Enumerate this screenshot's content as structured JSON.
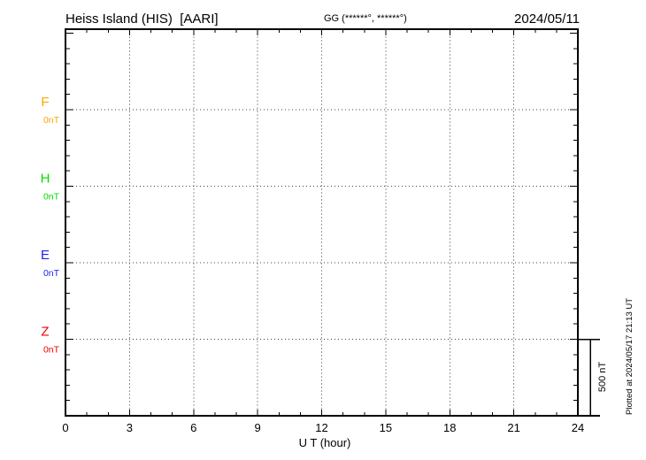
{
  "header": {
    "station_title": "Heiss Island (HIS)  [AARI]",
    "gg_coords": "GG (******°, ******°)",
    "date": "2024/05/11"
  },
  "channels": [
    {
      "label": "F",
      "unit_label": "0nT",
      "color": "#ffa500"
    },
    {
      "label": "H",
      "unit_label": "0nT",
      "color": "#00dd00"
    },
    {
      "label": "E",
      "unit_label": "0nT",
      "color": "#2222ee"
    },
    {
      "label": "Z",
      "unit_label": "0nT",
      "color": "#ee0000"
    }
  ],
  "x_axis": {
    "label": "U T (hour)",
    "tick_labels": [
      "0",
      "3",
      "6",
      "9",
      "12",
      "15",
      "18",
      "21",
      "24"
    ]
  },
  "scale_bar": {
    "label": "500 nT",
    "value_nt": 500
  },
  "plot_note": "Plotted at 2024/05/17 21:13 UT",
  "chart_data": {
    "type": "line",
    "title": "Heiss Island (HIS) [AARI] magnetogram for 2024/05/11",
    "xlabel": "U T (hour)",
    "x_range_hours": [
      0,
      24
    ],
    "x_major_tick_step_hours": 3,
    "x_minor_tick_step_hours": 1,
    "x_tick_labels": [
      0,
      3,
      6,
      9,
      12,
      15,
      18,
      21,
      24
    ],
    "y_scale_bar_nt": 500,
    "y_minor_tick_step_nt": 100,
    "channel_vertical_spacing_nt": 500,
    "grid": "dotted vertical gridlines every 3 hours; dotted horizontal line at each channel zero baseline",
    "legend_position": "left margin channel labels",
    "series": [
      {
        "name": "F",
        "baseline_nt": 0,
        "color": "#ffa500",
        "values": []
      },
      {
        "name": "H",
        "baseline_nt": 0,
        "color": "#00dd00",
        "values": []
      },
      {
        "name": "E",
        "baseline_nt": 0,
        "color": "#2222ee",
        "values": []
      },
      {
        "name": "Z",
        "baseline_nt": 0,
        "color": "#ee0000",
        "values": []
      }
    ],
    "note": "No data traces are drawn; only flat dotted 0 nT baselines are visible for all four channels"
  }
}
